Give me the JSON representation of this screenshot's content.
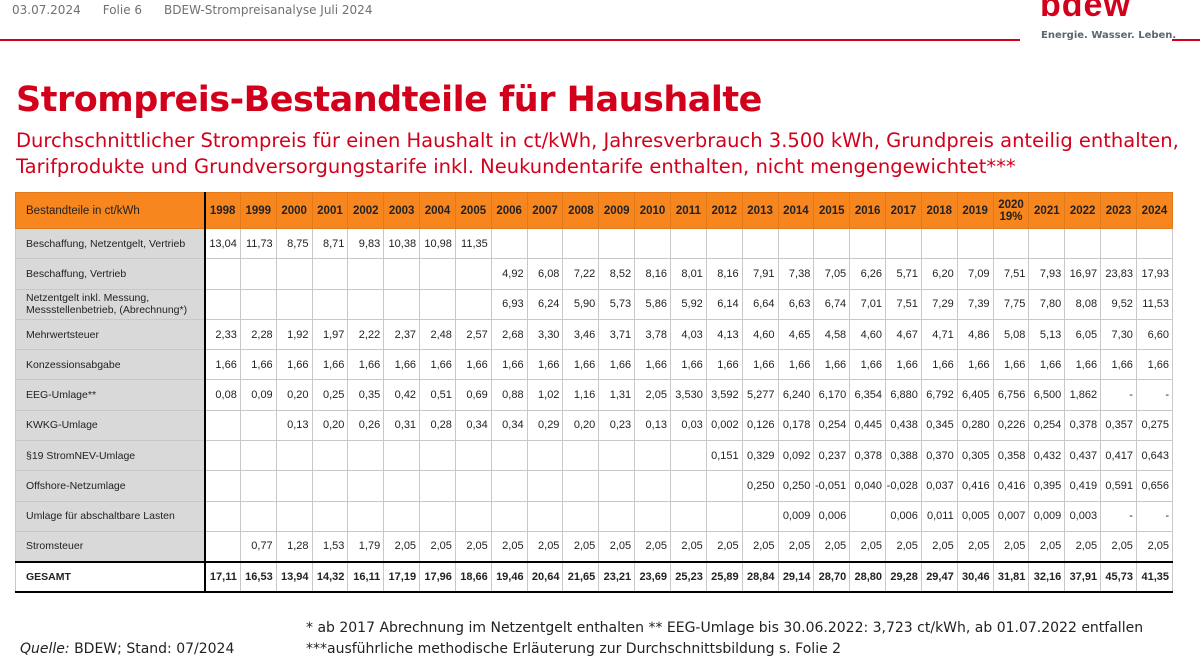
{
  "header": {
    "date": "03.07.2024",
    "slide": "Folie 6",
    "deck": "BDEW-Strompreisanalyse Juli 2024"
  },
  "logo": {
    "text": "bdew",
    "tagline": "Energie. Wasser. Leben.",
    "color": "#d3001c"
  },
  "title": "Strompreis-Bestandteile für Haushalte",
  "subtitle": "Durchschnittlicher Strompreis für einen Haushalt in ct/kWh, Jahresverbrauch 3.500 kWh, Grundpreis anteilig enthalten, Tarifprodukte und Grundversorgungstarife inkl. Neukundentarife enthalten, nicht mengengewichtet***",
  "table": {
    "corner": "Bestandteile in ct/kWh",
    "years": [
      "1998",
      "1999",
      "2000",
      "2001",
      "2002",
      "2003",
      "2004",
      "2005",
      "2006",
      "2007",
      "2008",
      "2009",
      "2010",
      "2011",
      "2012",
      "2013",
      "2014",
      "2015",
      "2016",
      "2017",
      "2018",
      "2019",
      "2020|19%",
      "2021",
      "2022",
      "2023",
      "2024"
    ],
    "rows": [
      {
        "label": "Beschaffung, Netzentgelt, Vertrieb",
        "values": [
          "13,04",
          "11,73",
          "8,75",
          "8,71",
          "9,83",
          "10,38",
          "10,98",
          "11,35",
          "",
          "",
          "",
          "",
          "",
          "",
          "",
          "",
          "",
          "",
          "",
          "",
          "",
          "",
          "",
          "",
          "",
          "",
          ""
        ]
      },
      {
        "label": "Beschaffung, Vertrieb",
        "values": [
          "",
          "",
          "",
          "",
          "",
          "",
          "",
          "",
          "4,92",
          "6,08",
          "7,22",
          "8,52",
          "8,16",
          "8,01",
          "8,16",
          "7,91",
          "7,38",
          "7,05",
          "6,26",
          "5,71",
          "6,20",
          "7,09",
          "7,51",
          "7,93",
          "16,97",
          "23,83",
          "17,93"
        ]
      },
      {
        "label": "Netzentgelt inkl. Messung, Messstellenbetrieb, (Abrechnung*)",
        "values": [
          "",
          "",
          "",
          "",
          "",
          "",
          "",
          "",
          "6,93",
          "6,24",
          "5,90",
          "5,73",
          "5,86",
          "5,92",
          "6,14",
          "6,64",
          "6,63",
          "6,74",
          "7,01",
          "7,51",
          "7,29",
          "7,39",
          "7,75",
          "7,80",
          "8,08",
          "9,52",
          "11,53"
        ]
      },
      {
        "label": "Mehrwertsteuer",
        "values": [
          "2,33",
          "2,28",
          "1,92",
          "1,97",
          "2,22",
          "2,37",
          "2,48",
          "2,57",
          "2,68",
          "3,30",
          "3,46",
          "3,71",
          "3,78",
          "4,03",
          "4,13",
          "4,60",
          "4,65",
          "4,58",
          "4,60",
          "4,67",
          "4,71",
          "4,86",
          "5,08",
          "5,13",
          "6,05",
          "7,30",
          "6,60"
        ]
      },
      {
        "label": "Konzessionsabgabe",
        "values": [
          "1,66",
          "1,66",
          "1,66",
          "1,66",
          "1,66",
          "1,66",
          "1,66",
          "1,66",
          "1,66",
          "1,66",
          "1,66",
          "1,66",
          "1,66",
          "1,66",
          "1,66",
          "1,66",
          "1,66",
          "1,66",
          "1,66",
          "1,66",
          "1,66",
          "1,66",
          "1,66",
          "1,66",
          "1,66",
          "1,66",
          "1,66"
        ]
      },
      {
        "label": "EEG-Umlage**",
        "values": [
          "0,08",
          "0,09",
          "0,20",
          "0,25",
          "0,35",
          "0,42",
          "0,51",
          "0,69",
          "0,88",
          "1,02",
          "1,16",
          "1,31",
          "2,05",
          "3,530",
          "3,592",
          "5,277",
          "6,240",
          "6,170",
          "6,354",
          "6,880",
          "6,792",
          "6,405",
          "6,756",
          "6,500",
          "1,862",
          "-",
          "-"
        ]
      },
      {
        "label": "KWKG-Umlage",
        "values": [
          "",
          "",
          "0,13",
          "0,20",
          "0,26",
          "0,31",
          "0,28",
          "0,34",
          "0,34",
          "0,29",
          "0,20",
          "0,23",
          "0,13",
          "0,03",
          "0,002",
          "0,126",
          "0,178",
          "0,254",
          "0,445",
          "0,438",
          "0,345",
          "0,280",
          "0,226",
          "0,254",
          "0,378",
          "0,357",
          "0,275"
        ]
      },
      {
        "label": "§19 StromNEV-Umlage",
        "values": [
          "",
          "",
          "",
          "",
          "",
          "",
          "",
          "",
          "",
          "",
          "",
          "",
          "",
          "",
          "0,151",
          "0,329",
          "0,092",
          "0,237",
          "0,378",
          "0,388",
          "0,370",
          "0,305",
          "0,358",
          "0,432",
          "0,437",
          "0,417",
          "0,643"
        ]
      },
      {
        "label": "Offshore-Netzumlage",
        "values": [
          "",
          "",
          "",
          "",
          "",
          "",
          "",
          "",
          "",
          "",
          "",
          "",
          "",
          "",
          "",
          "0,250",
          "0,250",
          "-0,051",
          "0,040",
          "-0,028",
          "0,037",
          "0,416",
          "0,416",
          "0,395",
          "0,419",
          "0,591",
          "0,656"
        ]
      },
      {
        "label": "Umlage für abschaltbare Lasten",
        "values": [
          "",
          "",
          "",
          "",
          "",
          "",
          "",
          "",
          "",
          "",
          "",
          "",
          "",
          "",
          "",
          "",
          "0,009",
          "0,006",
          "",
          "0,006",
          "0,011",
          "0,005",
          "0,007",
          "0,009",
          "0,003",
          "-",
          "-"
        ]
      },
      {
        "label": "Stromsteuer",
        "values": [
          "",
          "0,77",
          "1,28",
          "1,53",
          "1,79",
          "2,05",
          "2,05",
          "2,05",
          "2,05",
          "2,05",
          "2,05",
          "2,05",
          "2,05",
          "2,05",
          "2,05",
          "2,05",
          "2,05",
          "2,05",
          "2,05",
          "2,05",
          "2,05",
          "2,05",
          "2,05",
          "2,05",
          "2,05",
          "2,05",
          "2,05"
        ]
      }
    ],
    "total": {
      "label": "GESAMT",
      "values": [
        "17,11",
        "16,53",
        "13,94",
        "14,32",
        "16,11",
        "17,19",
        "17,96",
        "18,66",
        "19,46",
        "20,64",
        "21,65",
        "23,21",
        "23,69",
        "25,23",
        "25,89",
        "28,84",
        "29,14",
        "28,70",
        "28,80",
        "29,28",
        "29,47",
        "30,46",
        "31,81",
        "32,16",
        "37,91",
        "45,73",
        "41,35"
      ]
    }
  },
  "source": {
    "label": "Quelle:",
    "text": " BDEW; Stand: 07/2024"
  },
  "footnotes": [
    "* ab 2017 Abrechnung im Netzentgelt enthalten ** EEG-Umlage bis 30.06.2022: 3,723 ct/kWh, ab 01.07.2022 entfallen",
    "***ausführliche methodische Erläuterung zur Durchschnittsbildung s. Folie 2"
  ]
}
